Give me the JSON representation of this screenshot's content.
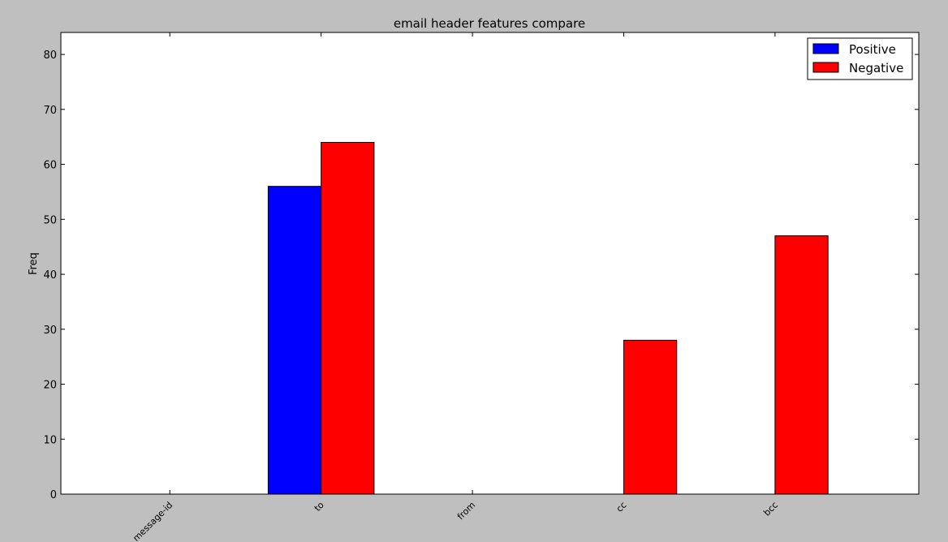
{
  "chart_data": {
    "type": "bar",
    "title": "email header features compare",
    "xlabel": "",
    "ylabel": "Freq",
    "categories": [
      "message-id",
      "to",
      "from",
      "cc",
      "bcc"
    ],
    "series": [
      {
        "name": "Positive",
        "color": "#0000ff",
        "values": [
          0,
          56,
          0,
          0,
          0
        ]
      },
      {
        "name": "Negative",
        "color": "#ff0000",
        "values": [
          0,
          64,
          0,
          28,
          47
        ]
      }
    ],
    "ylim": [
      0,
      84
    ],
    "yticks": [
      "0",
      "10",
      "20",
      "30",
      "40",
      "50",
      "60",
      "70",
      "80"
    ],
    "grid": false,
    "legend_position": "top-right"
  }
}
